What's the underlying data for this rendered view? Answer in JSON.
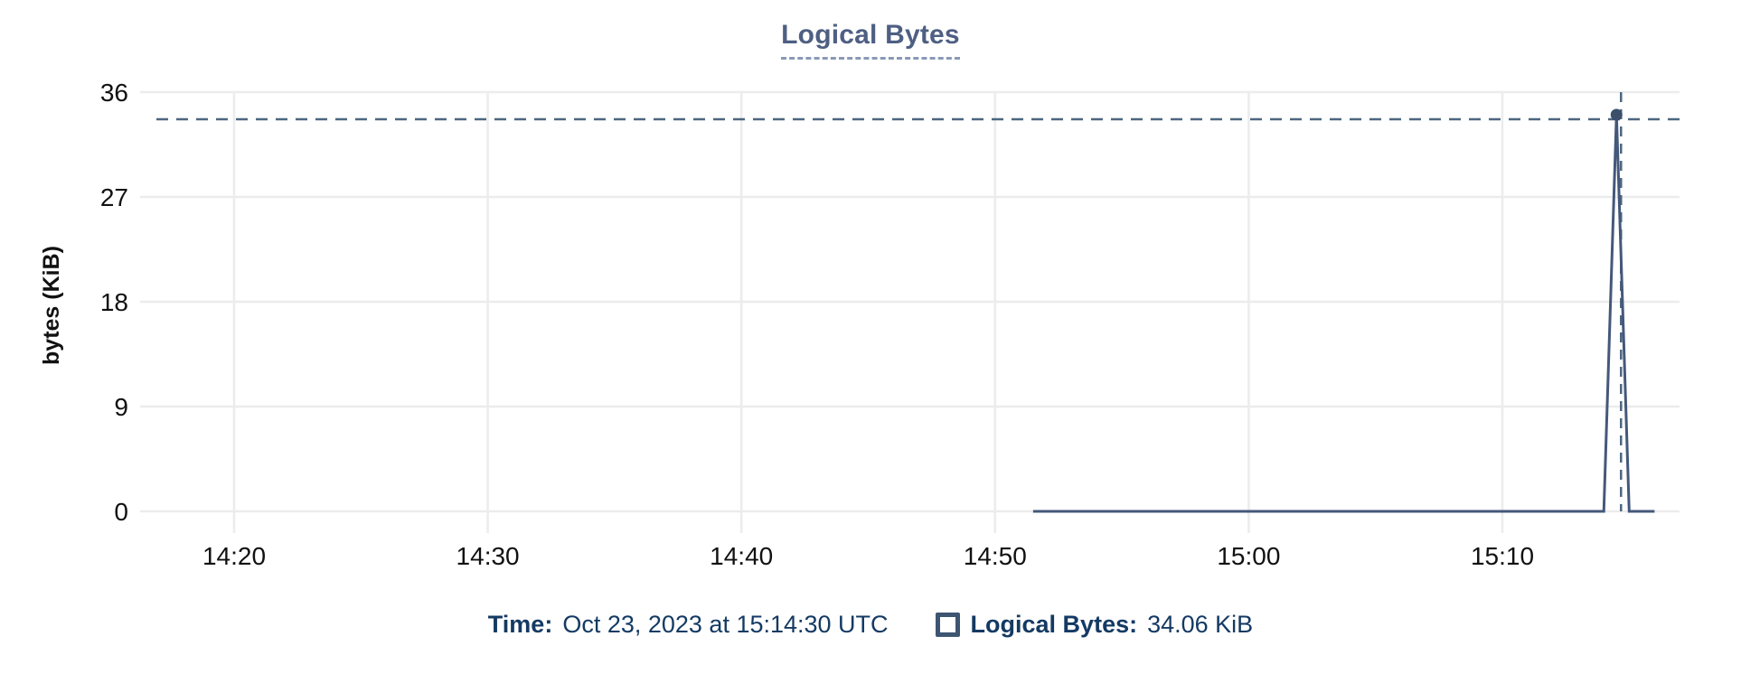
{
  "chart_data": {
    "type": "line",
    "title": "Logical Bytes",
    "xlabel": "",
    "ylabel": "bytes (KiB)",
    "x_ticks": [
      "14:20",
      "14:30",
      "14:40",
      "14:50",
      "15:00",
      "15:10"
    ],
    "y_ticks": [
      0,
      9,
      18,
      27,
      36
    ],
    "ylim": [
      0,
      36
    ],
    "grid": true,
    "legend_position": "bottom",
    "series": [
      {
        "name": "Logical Bytes",
        "points": [
          {
            "time": "14:51:30",
            "value": 0
          },
          {
            "time": "15:14:00",
            "value": 0
          },
          {
            "time": "15:14:30",
            "value": 34.06
          },
          {
            "time": "15:15:00",
            "value": 0
          },
          {
            "time": "15:16:00",
            "value": 0
          }
        ]
      }
    ],
    "hover": {
      "time": "15:14:30",
      "value": 34.06,
      "crosshair": true
    }
  },
  "readout": {
    "time_label": "Time:",
    "time_value": "Oct 23, 2023 at 15:14:30 UTC",
    "series_label": "Logical Bytes:",
    "series_value": "34.06 KiB"
  },
  "colors": {
    "line": "#44587a",
    "marker": "#3c506c",
    "crosshair": "#4d6680",
    "title": "#4e5f83",
    "title_underline": "#8a99b7",
    "grid": "#ececec",
    "tick_text": "#111111",
    "readout_text": "#143a63",
    "legend_swatch_border": "#3e5572"
  }
}
